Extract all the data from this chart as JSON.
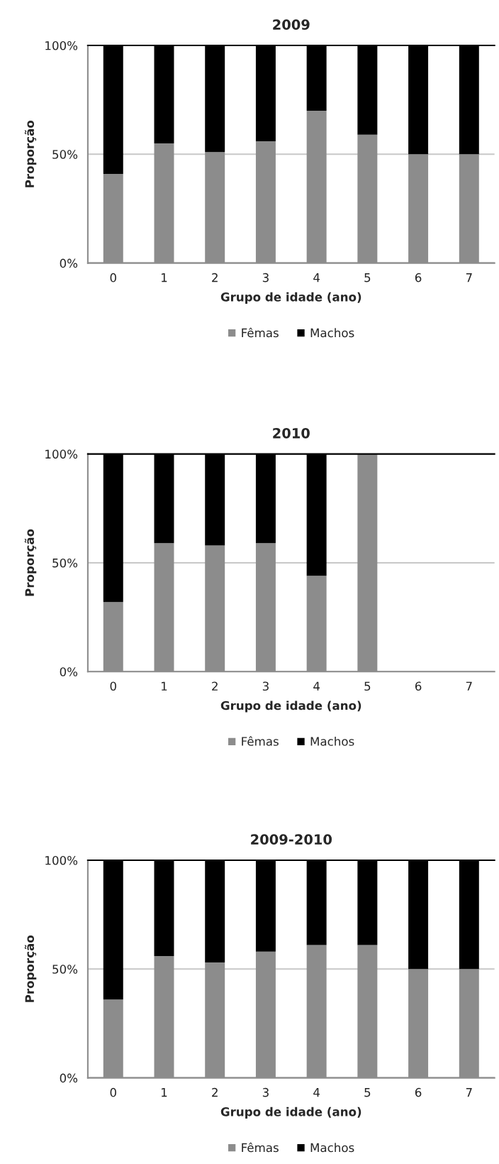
{
  "chart_data": [
    {
      "type": "bar",
      "title": "2009",
      "xlabel": "Grupo de idade (ano)",
      "ylabel": "Proporção",
      "categories": [
        "0",
        "1",
        "2",
        "3",
        "4",
        "5",
        "6",
        "7"
      ],
      "stacked": true,
      "ylim": [
        0,
        100
      ],
      "yticks": [
        {
          "value": 0,
          "label": "0%"
        },
        {
          "value": 50,
          "label": "50%"
        },
        {
          "value": 100,
          "label": "100%"
        }
      ],
      "grid": "y",
      "legend": "bottom",
      "series": [
        {
          "name": "Fêmas",
          "color": "#8c8c8c",
          "values": [
            41,
            55,
            51,
            56,
            70,
            59,
            50,
            50
          ]
        },
        {
          "name": "Machos",
          "color": "#000000",
          "values": [
            59,
            45,
            49,
            44,
            30,
            41,
            50,
            50
          ]
        }
      ]
    },
    {
      "type": "bar",
      "title": "2010",
      "xlabel": "Grupo de idade (ano)",
      "ylabel": "Proporção",
      "categories": [
        "0",
        "1",
        "2",
        "3",
        "4",
        "5",
        "6",
        "7"
      ],
      "stacked": true,
      "ylim": [
        0,
        100
      ],
      "yticks": [
        {
          "value": 0,
          "label": "0%"
        },
        {
          "value": 50,
          "label": "50%"
        },
        {
          "value": 100,
          "label": "100%"
        }
      ],
      "grid": "y",
      "legend": "bottom",
      "series": [
        {
          "name": "Fêmas",
          "color": "#8c8c8c",
          "values": [
            32,
            59,
            58,
            59,
            44,
            100,
            null,
            null
          ]
        },
        {
          "name": "Machos",
          "color": "#000000",
          "values": [
            68,
            41,
            42,
            41,
            56,
            0,
            null,
            null
          ]
        }
      ]
    },
    {
      "type": "bar",
      "title": "2009-2010",
      "xlabel": "Grupo de idade (ano)",
      "ylabel": "Proporção",
      "categories": [
        "0",
        "1",
        "2",
        "3",
        "4",
        "5",
        "6",
        "7"
      ],
      "stacked": true,
      "ylim": [
        0,
        100
      ],
      "yticks": [
        {
          "value": 0,
          "label": "0%"
        },
        {
          "value": 50,
          "label": "50%"
        },
        {
          "value": 100,
          "label": "100%"
        }
      ],
      "grid": "y",
      "legend": "bottom",
      "series": [
        {
          "name": "Fêmas",
          "color": "#8c8c8c",
          "values": [
            36,
            56,
            53,
            58,
            61,
            61,
            50,
            50
          ]
        },
        {
          "name": "Machos",
          "color": "#000000",
          "values": [
            64,
            44,
            47,
            42,
            39,
            39,
            50,
            50
          ]
        }
      ]
    }
  ]
}
